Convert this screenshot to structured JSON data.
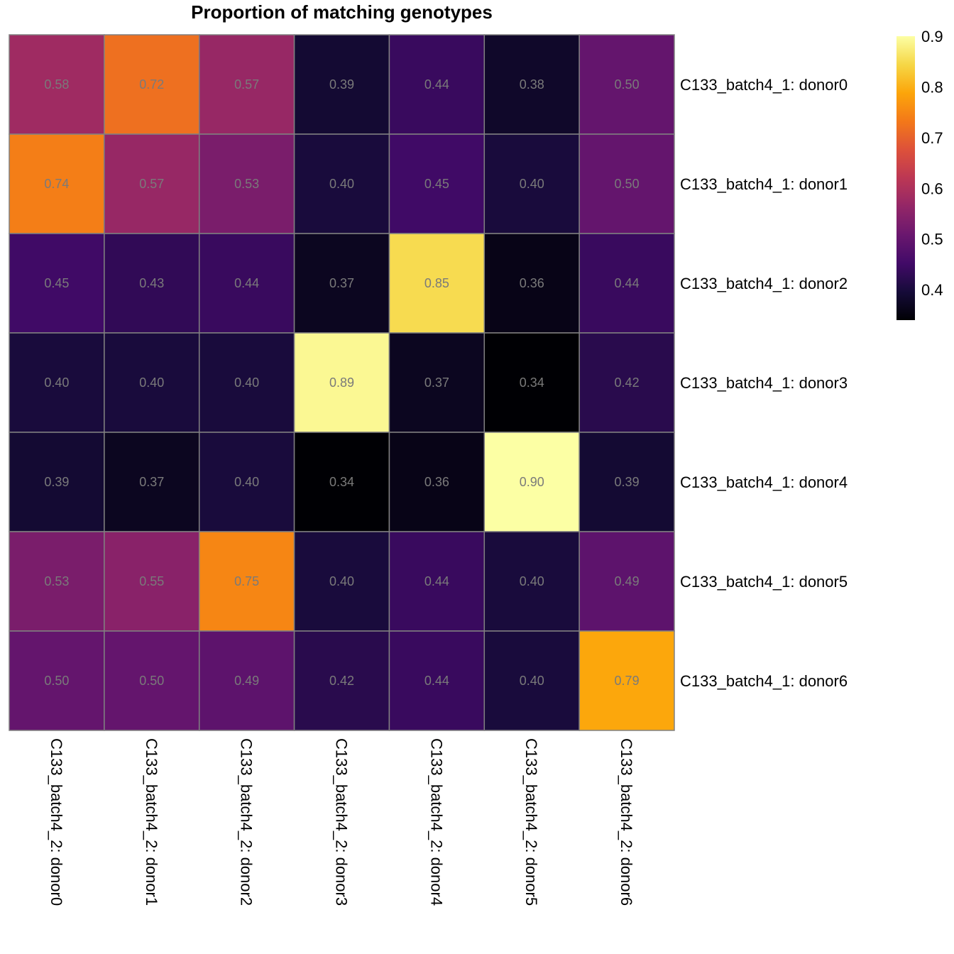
{
  "chart_data": {
    "type": "heatmap",
    "title": "Proportion of matching genotypes",
    "rows": [
      "C133_batch4_1: donor0",
      "C133_batch4_1: donor1",
      "C133_batch4_1: donor2",
      "C133_batch4_1: donor3",
      "C133_batch4_1: donor4",
      "C133_batch4_1: donor5",
      "C133_batch4_1: donor6"
    ],
    "columns": [
      "C133_batch4_2: donor0",
      "C133_batch4_2: donor1",
      "C133_batch4_2: donor2",
      "C133_batch4_2: donor3",
      "C133_batch4_2: donor4",
      "C133_batch4_2: donor5",
      "C133_batch4_2: donor6"
    ],
    "values": [
      [
        0.58,
        0.72,
        0.57,
        0.39,
        0.44,
        0.38,
        0.5
      ],
      [
        0.74,
        0.57,
        0.53,
        0.4,
        0.45,
        0.4,
        0.5
      ],
      [
        0.45,
        0.43,
        0.44,
        0.37,
        0.85,
        0.36,
        0.44
      ],
      [
        0.4,
        0.4,
        0.4,
        0.89,
        0.37,
        0.34,
        0.42
      ],
      [
        0.39,
        0.37,
        0.4,
        0.34,
        0.36,
        0.9,
        0.39
      ],
      [
        0.53,
        0.55,
        0.75,
        0.4,
        0.44,
        0.4,
        0.49
      ],
      [
        0.5,
        0.5,
        0.49,
        0.42,
        0.44,
        0.4,
        0.79
      ]
    ],
    "colormap": "inferno",
    "color_range": [
      0.34,
      0.9
    ],
    "colorbar_ticks": [
      "0.4",
      "0.5",
      "0.6",
      "0.7",
      "0.8",
      "0.9"
    ],
    "colorbar_placement": "top-right",
    "cell_border_color": "#808080",
    "cell_label_color": "#7a7a7a"
  }
}
